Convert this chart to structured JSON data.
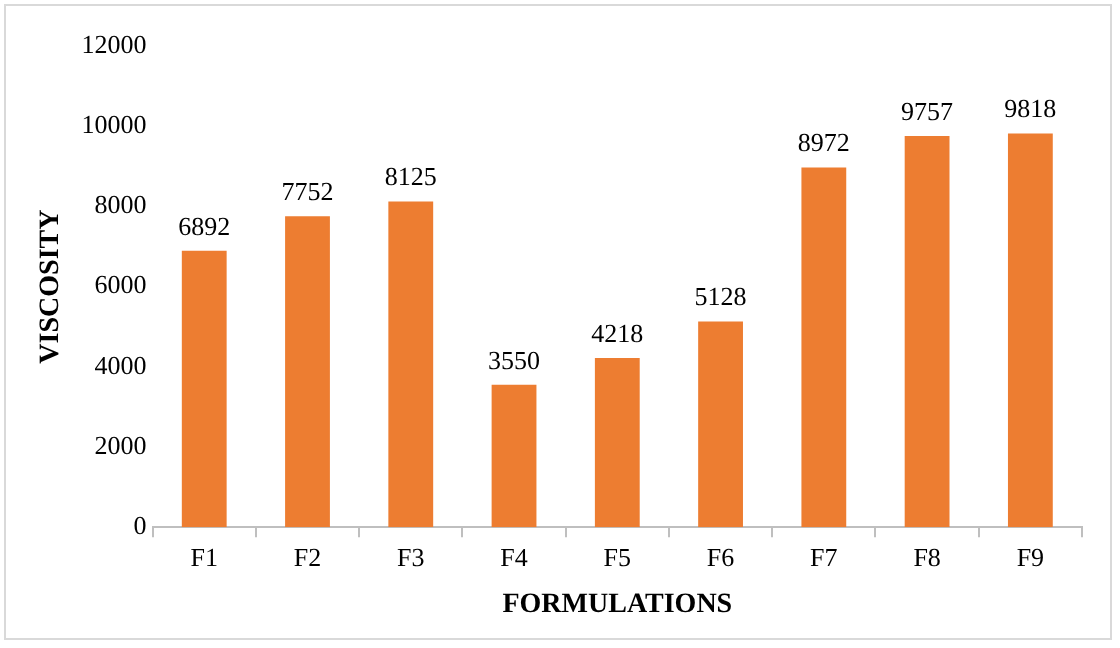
{
  "chart_data": {
    "type": "bar",
    "xlabel": "FORMULATIONS",
    "ylabel": "VISCOSITY",
    "categories": [
      "F1",
      "F2",
      "F3",
      "F4",
      "F5",
      "F6",
      "F7",
      "F8",
      "F9"
    ],
    "values": [
      6892,
      7752,
      8125,
      3550,
      4218,
      5128,
      8972,
      9757,
      9818
    ],
    "color": "#ed7d31",
    "ylim": [
      0,
      12000
    ],
    "yticks": [
      0,
      2000,
      4000,
      6000,
      8000,
      10000,
      12000
    ],
    "grid": false,
    "legend": false,
    "data_labels": true
  }
}
